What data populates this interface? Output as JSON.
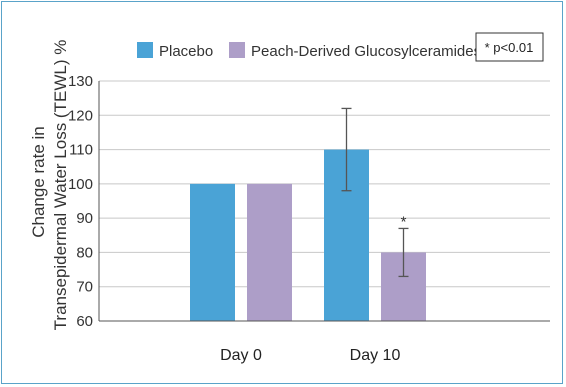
{
  "chart_data": {
    "type": "bar",
    "categories": [
      "Day 0",
      "Day 10"
    ],
    "series": [
      {
        "name": "Placebo",
        "values": [
          100,
          110
        ],
        "error": [
          0,
          12
        ],
        "color": "#4aa3d6"
      },
      {
        "name": "Peach-Derived Glucosylceramides",
        "values": [
          100,
          80
        ],
        "error": [
          0,
          7
        ],
        "color": "#ad9ec8"
      }
    ],
    "significance": [
      {
        "category_index": 1,
        "series_index": 1,
        "label": "*"
      }
    ],
    "ylabel_line1": "Change rate in",
    "ylabel_line2": "Transepidermal Water Loss (TEWL) %",
    "xlabel": "",
    "title": "",
    "ylim": [
      60,
      130
    ],
    "yticks": [
      60,
      70,
      80,
      90,
      100,
      110,
      120,
      130
    ],
    "grid": true,
    "legend_position": "top",
    "note": "* p<0.01"
  }
}
